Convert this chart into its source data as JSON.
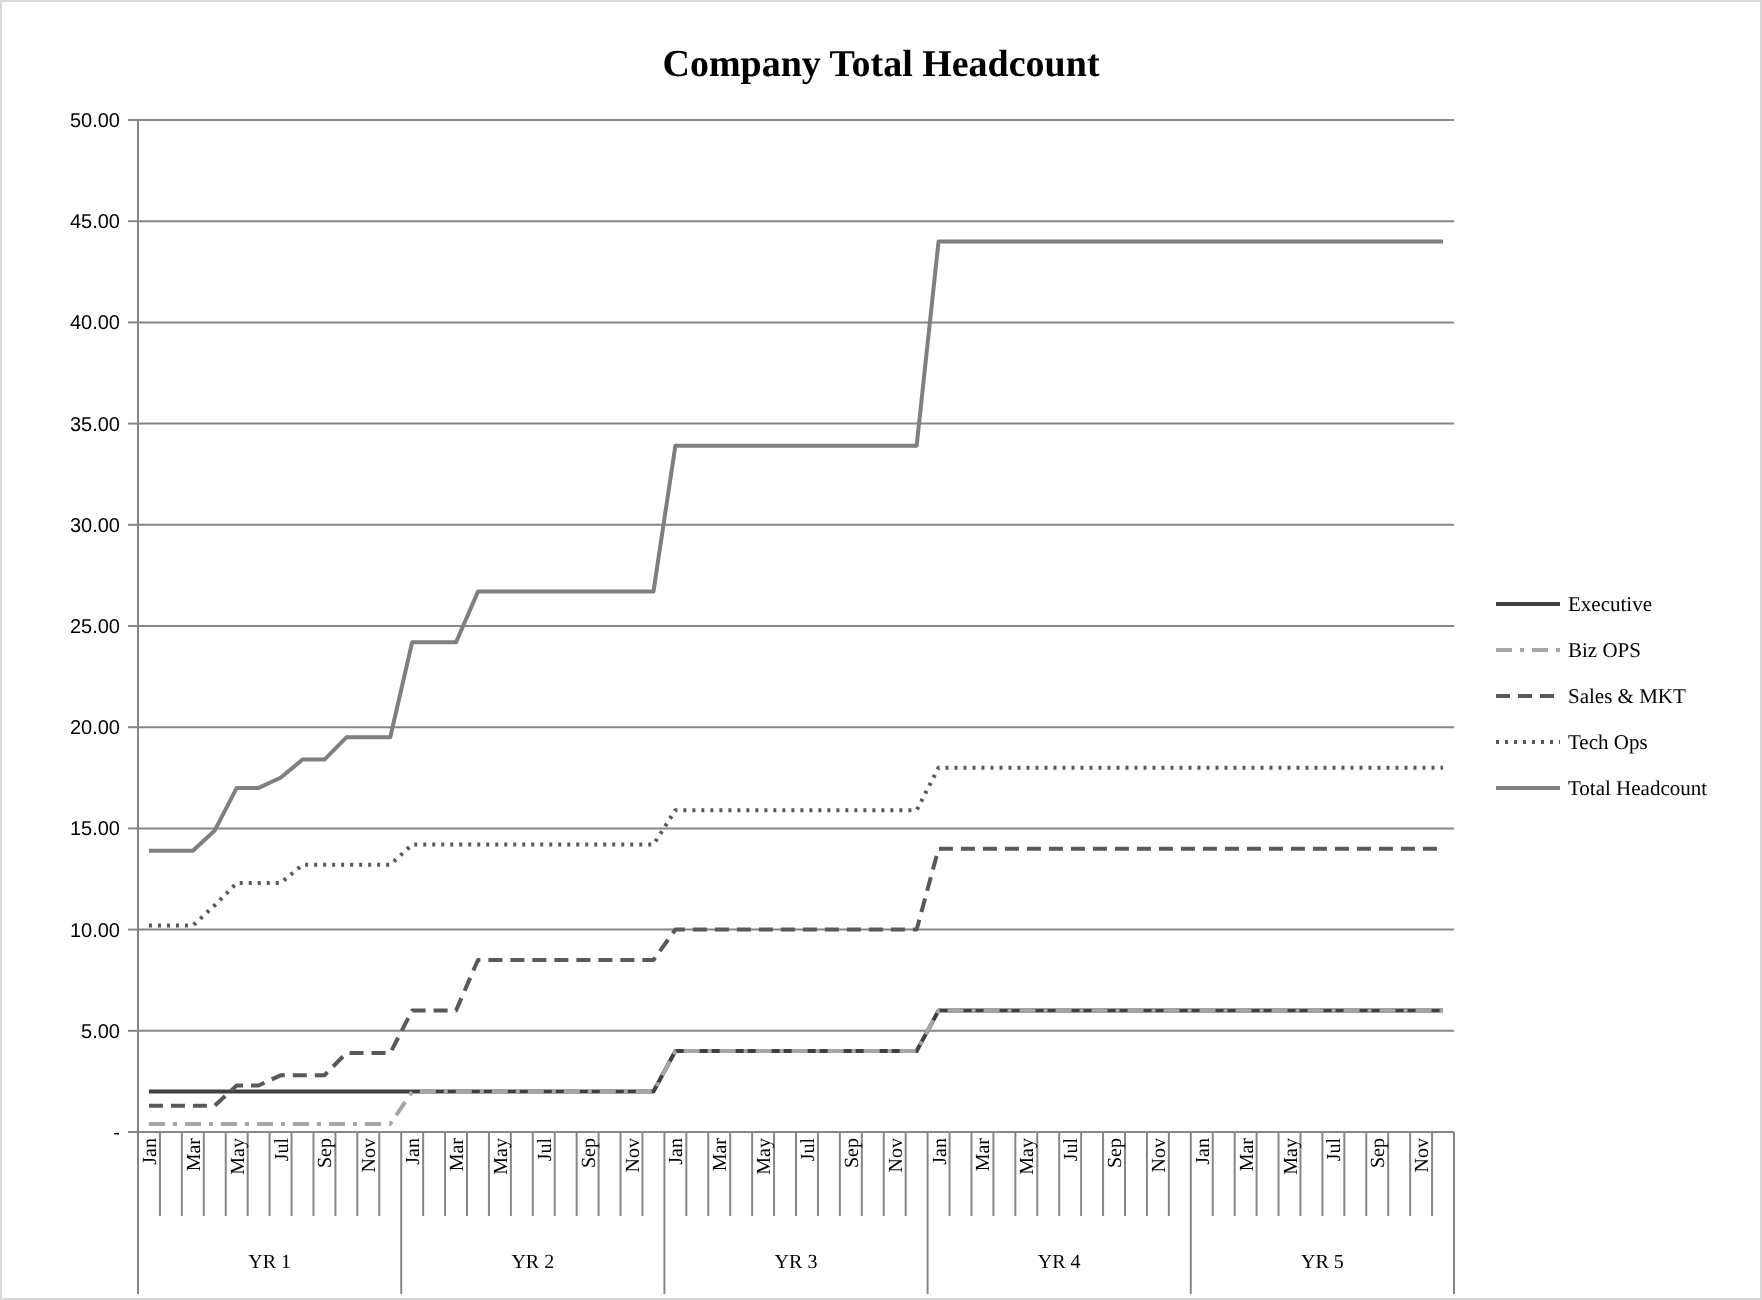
{
  "chart_data": {
    "type": "line",
    "title": "Company Total Headcount",
    "categories": [
      "Jan",
      null,
      "Mar",
      null,
      "May",
      null,
      "Jul",
      null,
      "Sep",
      null,
      "Nov",
      null,
      "Jan",
      null,
      "Mar",
      null,
      "May",
      null,
      "Jul",
      null,
      "Sep",
      null,
      "Nov",
      null,
      "Jan",
      null,
      "Mar",
      null,
      "May",
      null,
      "Jul",
      null,
      "Sep",
      null,
      "Nov",
      null,
      "Jan",
      null,
      "Mar",
      null,
      "May",
      null,
      "Jul",
      null,
      "Sep",
      null,
      "Nov",
      null,
      "Jan",
      null,
      "Mar",
      null,
      "May",
      null,
      "Jul",
      null,
      "Sep",
      null,
      "Nov",
      null
    ],
    "annotations": [
      "YR 1",
      "YR 2",
      "YR 3",
      "YR 4",
      "YR 5"
    ],
    "series": [
      {
        "name": "Executive",
        "color": "#404040",
        "line_style": "solid",
        "values": [
          2,
          2,
          2,
          2,
          2,
          2,
          2,
          2,
          2,
          2,
          2,
          2,
          2,
          2,
          2,
          2,
          2,
          2,
          2,
          2,
          2,
          2,
          2,
          2,
          4,
          4,
          4,
          4,
          4,
          4,
          4,
          4,
          4,
          4,
          4,
          4,
          6,
          6,
          6,
          6,
          6,
          6,
          6,
          6,
          6,
          6,
          6,
          6,
          6,
          6,
          6,
          6,
          6,
          6,
          6,
          6,
          6,
          6,
          6,
          6
        ]
      },
      {
        "name": "Biz OPS",
        "color": "#a6a6a6",
        "line_style": "dashdot",
        "values": [
          0.4,
          0.4,
          0.4,
          0.4,
          0.4,
          0.4,
          0.4,
          0.4,
          0.4,
          0.4,
          0.4,
          0.4,
          2,
          2,
          2,
          2,
          2,
          2,
          2,
          2,
          2,
          2,
          2,
          2,
          4,
          4,
          4,
          4,
          4,
          4,
          4,
          4,
          4,
          4,
          4,
          4,
          6,
          6,
          6,
          6,
          6,
          6,
          6,
          6,
          6,
          6,
          6,
          6,
          6,
          6,
          6,
          6,
          6,
          6,
          6,
          6,
          6,
          6,
          6,
          6
        ]
      },
      {
        "name": "Sales & MKT",
        "color": "#595959",
        "line_style": "dashed",
        "values": [
          1.3,
          1.3,
          1.3,
          1.3,
          2.3,
          2.3,
          2.8,
          2.8,
          2.8,
          3.9,
          3.9,
          3.9,
          6,
          6,
          6,
          8.5,
          8.5,
          8.5,
          8.5,
          8.5,
          8.5,
          8.5,
          8.5,
          8.5,
          10,
          10,
          10,
          10,
          10,
          10,
          10,
          10,
          10,
          10,
          10,
          10,
          14,
          14,
          14,
          14,
          14,
          14,
          14,
          14,
          14,
          14,
          14,
          14,
          14,
          14,
          14,
          14,
          14,
          14,
          14,
          14,
          14,
          14,
          14,
          14
        ]
      },
      {
        "name": "Tech Ops",
        "color": "#595959",
        "line_style": "dotted",
        "values": [
          10.2,
          10.2,
          10.2,
          11.2,
          12.3,
          12.3,
          12.3,
          13.2,
          13.2,
          13.2,
          13.2,
          13.2,
          14.2,
          14.2,
          14.2,
          14.2,
          14.2,
          14.2,
          14.2,
          14.2,
          14.2,
          14.2,
          14.2,
          14.2,
          15.9,
          15.9,
          15.9,
          15.9,
          15.9,
          15.9,
          15.9,
          15.9,
          15.9,
          15.9,
          15.9,
          15.9,
          18,
          18,
          18,
          18,
          18,
          18,
          18,
          18,
          18,
          18,
          18,
          18,
          18,
          18,
          18,
          18,
          18,
          18,
          18,
          18,
          18,
          18,
          18,
          18
        ]
      },
      {
        "name": "Total Headcount",
        "color": "#7f7f7f",
        "line_style": "solid",
        "values": [
          13.9,
          13.9,
          13.9,
          14.9,
          17,
          17,
          17.5,
          18.4,
          18.4,
          19.5,
          19.5,
          19.5,
          24.2,
          24.2,
          24.2,
          26.7,
          26.7,
          26.7,
          26.7,
          26.7,
          26.7,
          26.7,
          26.7,
          26.7,
          33.9,
          33.9,
          33.9,
          33.9,
          33.9,
          33.9,
          33.9,
          33.9,
          33.9,
          33.9,
          33.9,
          33.9,
          44,
          44,
          44,
          44,
          44,
          44,
          44,
          44,
          44,
          44,
          44,
          44,
          44,
          44,
          44,
          44,
          44,
          44,
          44,
          44,
          44,
          44,
          44,
          44
        ]
      }
    ],
    "ylim": [
      0,
      50
    ],
    "yticks": [
      {
        "value": 0,
        "label": "-"
      },
      {
        "value": 5,
        "label": "5.00"
      },
      {
        "value": 10,
        "label": "10.00"
      },
      {
        "value": 15,
        "label": "15.00"
      },
      {
        "value": 20,
        "label": "20.00"
      },
      {
        "value": 25,
        "label": "25.00"
      },
      {
        "value": 30,
        "label": "30.00"
      },
      {
        "value": 35,
        "label": "35.00"
      },
      {
        "value": 40,
        "label": "40.00"
      },
      {
        "value": 45,
        "label": "45.00"
      },
      {
        "value": 50,
        "label": "50.00"
      }
    ],
    "grid": "y",
    "legend": "right",
    "marker": "none"
  }
}
